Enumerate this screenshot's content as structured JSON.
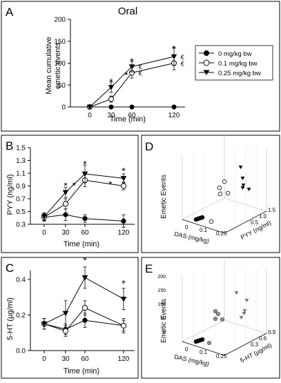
{
  "colors": {
    "line": "#000000",
    "open_fill": "#ffffff",
    "filled": "#000000",
    "gray_marker": "#8a8a8a",
    "panel_border": "#000000"
  },
  "chart_data": [
    {
      "panel": "A",
      "type": "line",
      "title": "Oral",
      "xlabel": "Time (min)",
      "ylabel_line1": "Mean cumulative",
      "ylabel_line2": "emetic events",
      "xticks": [
        "0",
        "30",
        "60",
        "120"
      ],
      "yticks": [
        "0",
        "50",
        "100",
        "150",
        "200"
      ],
      "ylim": [
        0,
        200
      ],
      "legend_position": "right",
      "series": [
        {
          "name": "0 mg/kg bw",
          "marker": "filled-circle",
          "points": [
            {
              "x": "0",
              "y": 0
            },
            {
              "x": "30",
              "y": 0
            },
            {
              "x": "60",
              "y": 0
            },
            {
              "x": "120",
              "y": 0
            }
          ]
        },
        {
          "name": "0.1 mg/kg bw",
          "marker": "open-circle",
          "points": [
            {
              "x": "0",
              "y": 0
            },
            {
              "x": "30",
              "y": 18
            },
            {
              "x": "60",
              "y": 78
            },
            {
              "x": "120",
              "y": 100
            }
          ],
          "errors": [
            0,
            7,
            12,
            15
          ]
        },
        {
          "name": "0.25 mg/kg bw",
          "marker": "filled-triangle-down",
          "points": [
            {
              "x": "0",
              "y": 0
            },
            {
              "x": "30",
              "y": 45
            },
            {
              "x": "60",
              "y": 92
            },
            {
              "x": "120",
              "y": 115
            }
          ],
          "errors": [
            0,
            12,
            12,
            20
          ]
        }
      ],
      "annotations": [
        {
          "text": "*",
          "x": "30",
          "y": 62
        },
        {
          "text": "*",
          "x": "60",
          "y": 109
        },
        {
          "text": "*",
          "x": "120",
          "y": 138
        },
        {
          "text": "*",
          "x": "52",
          "y": 78
        },
        {
          "text": "€",
          "x": "72",
          "y": 93
        },
        {
          "text": "€",
          "x": "72",
          "y": 78
        },
        {
          "text": "€",
          "x": "132",
          "y": 115
        },
        {
          "text": "€",
          "x": "132",
          "y": 100
        }
      ]
    },
    {
      "panel": "B",
      "type": "line",
      "xlabel": "Time (min)",
      "ylabel": "PYY (ng/ml)",
      "xticks": [
        "0",
        "30",
        "60",
        "120"
      ],
      "yticks": [
        "0.3",
        "0.5",
        "0.7",
        "0.9",
        "1.1",
        "1.3",
        "1.5"
      ],
      "ylim": [
        0.3,
        1.5
      ],
      "series": [
        {
          "marker": "filled-circle",
          "points": [
            {
              "x": "0",
              "y": 0.41
            },
            {
              "x": "30",
              "y": 0.45
            },
            {
              "x": "60",
              "y": 0.39
            },
            {
              "x": "120",
              "y": 0.35
            }
          ],
          "errors": [
            0.05,
            0.09,
            0.06,
            0.1
          ]
        },
        {
          "marker": "open-circle",
          "points": [
            {
              "x": "0",
              "y": 0.41
            },
            {
              "x": "30",
              "y": 0.62
            },
            {
              "x": "60",
              "y": 0.99
            },
            {
              "x": "120",
              "y": 0.9
            }
          ],
          "errors": [
            0.06,
            0.08,
            0.1,
            0.06
          ]
        },
        {
          "marker": "filled-triangle-down",
          "points": [
            {
              "x": "0",
              "y": 0.42
            },
            {
              "x": "30",
              "y": 0.8
            },
            {
              "x": "60",
              "y": 1.09
            },
            {
              "x": "120",
              "y": 1.02
            }
          ],
          "errors": [
            0.06,
            0.08,
            0.14,
            0.07
          ]
        }
      ],
      "annotations": [
        {
          "text": "*",
          "x": "30",
          "y": 0.94
        },
        {
          "text": "*",
          "x": "45",
          "y": 0.94
        },
        {
          "text": "*",
          "x": "60",
          "y": 1.28
        },
        {
          "text": "*",
          "x": "120",
          "y": 1.17
        },
        {
          "text": "*",
          "x": "100",
          "y": 0.96
        }
      ]
    },
    {
      "panel": "C",
      "type": "line",
      "xlabel": "Time (min)",
      "ylabel": "5-HT (µg/ml)",
      "xticks": [
        "0",
        "30",
        "60",
        "120"
      ],
      "yticks": [
        "0.0",
        "0.2",
        "0.4"
      ],
      "ylim": [
        0,
        0.45
      ],
      "series": [
        {
          "marker": "filled-circle",
          "points": [
            {
              "x": "0",
              "y": 0.15
            },
            {
              "x": "30",
              "y": 0.12
            },
            {
              "x": "60",
              "y": 0.17
            },
            {
              "x": "120",
              "y": 0.14
            }
          ],
          "errors": [
            0.03,
            0.03,
            0.04,
            0.03
          ]
        },
        {
          "marker": "open-circle",
          "points": [
            {
              "x": "0",
              "y": 0.15
            },
            {
              "x": "30",
              "y": 0.11
            },
            {
              "x": "60",
              "y": 0.24
            },
            {
              "x": "120",
              "y": 0.14
            }
          ],
          "errors": [
            0.03,
            0.03,
            0.04,
            0.04
          ]
        },
        {
          "marker": "filled-triangle-down",
          "points": [
            {
              "x": "0",
              "y": 0.15
            },
            {
              "x": "30",
              "y": 0.21
            },
            {
              "x": "60",
              "y": 0.41
            },
            {
              "x": "120",
              "y": 0.29
            }
          ],
          "errors": [
            0.03,
            0.07,
            0.06,
            0.06
          ]
        }
      ],
      "annotations": [
        {
          "text": "*",
          "x": "60",
          "y": 0.52
        },
        {
          "text": "*",
          "x": "120",
          "y": 0.39
        }
      ]
    },
    {
      "panel": "D",
      "type": "scatter",
      "subtype": "3d",
      "xlabel": "DAS (mg/kg)",
      "ylabel": "PYY (ng/ml)",
      "zlabel": "Emetic Events",
      "xticks": [
        "0",
        "0.1",
        "0.25"
      ],
      "yticks": [
        "0.5",
        "1.0",
        "1.5"
      ]
    },
    {
      "panel": "E",
      "type": "scatter",
      "subtype": "3d",
      "xlabel": "DAS (mg/kg)",
      "ylabel": "5-HT (µg/ml)",
      "zlabel": "Emetic Events",
      "xticks": [
        "0",
        "0.1",
        "0.25"
      ],
      "yticks": [
        "0.3",
        "0.6",
        "0.9"
      ]
    }
  ],
  "legend": [
    "0 mg/kg bw",
    "0.1 mg/kg bw",
    "0.25 mg/kg bw"
  ]
}
